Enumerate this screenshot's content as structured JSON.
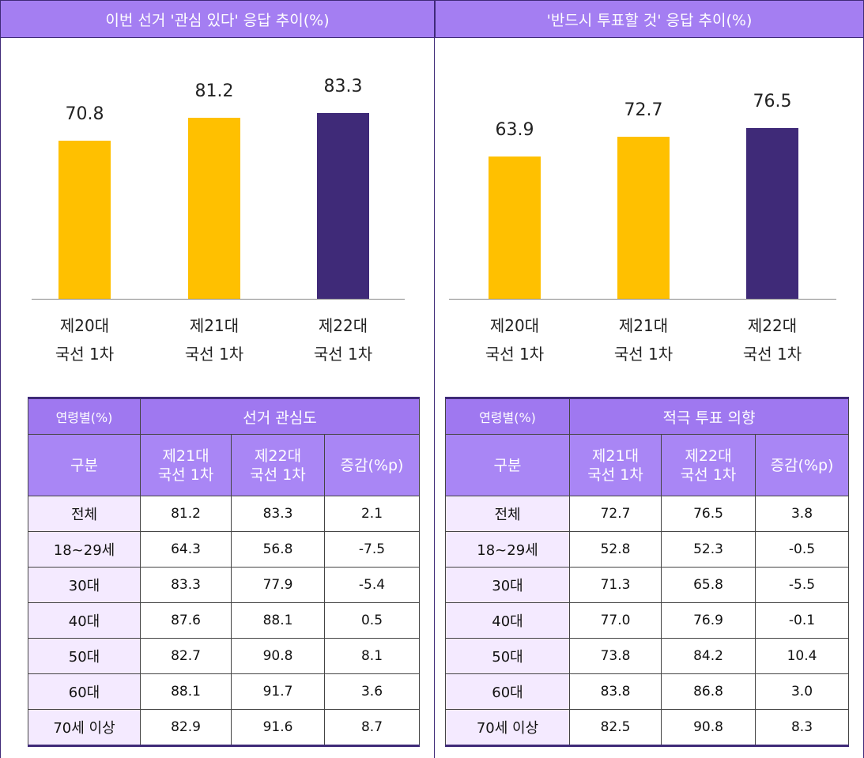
{
  "chart_data": [
    {
      "type": "bar",
      "title": "이번 선거 '관심 있다' 응답 추이(%)",
      "categories": [
        "제20대\n국선 1차",
        "제21대\n국선 1차",
        "제22대\n국선 1차"
      ],
      "values": [
        70.8,
        81.2,
        83.3
      ],
      "colors": [
        "#FFC000",
        "#FFC000",
        "#3F2A78"
      ],
      "ylim": [
        0,
        100
      ]
    },
    {
      "type": "bar",
      "title": "'반드시 투표할 것' 응답 추이(%)",
      "categories": [
        "제20대\n국선 1차",
        "제21대\n국선 1차",
        "제22대\n국선 1차"
      ],
      "values": [
        63.9,
        72.7,
        76.5
      ],
      "colors": [
        "#FFC000",
        "#FFC000",
        "#3F2A78"
      ],
      "ylim": [
        0,
        100
      ]
    }
  ],
  "tables": [
    {
      "header": [
        "연령별(%)",
        "선거 관심도"
      ],
      "columns": [
        "구분",
        "제21대\n국선 1차",
        "제22대\n국선 1차",
        "증감(%p)"
      ],
      "rows": [
        [
          "전체",
          "81.2",
          "83.3",
          "2.1"
        ],
        [
          "18~29세",
          "64.3",
          "56.8",
          "-7.5"
        ],
        [
          "30대",
          "83.3",
          "77.9",
          "-5.4"
        ],
        [
          "40대",
          "87.6",
          "88.1",
          "0.5"
        ],
        [
          "50대",
          "82.7",
          "90.8",
          "8.1"
        ],
        [
          "60대",
          "88.1",
          "91.7",
          "3.6"
        ],
        [
          "70세 이상",
          "82.9",
          "91.6",
          "8.7"
        ]
      ]
    },
    {
      "header": [
        "연령별(%)",
        "적극 투표 의향"
      ],
      "columns": [
        "구분",
        "제21대\n국선 1차",
        "제22대\n국선 1차",
        "증감(%p)"
      ],
      "rows": [
        [
          "전체",
          "72.7",
          "76.5",
          "3.8"
        ],
        [
          "18~29세",
          "52.8",
          "52.3",
          "-0.5"
        ],
        [
          "30대",
          "71.3",
          "65.8",
          "-5.5"
        ],
        [
          "40대",
          "77.0",
          "76.9",
          "-0.1"
        ],
        [
          "50대",
          "73.8",
          "84.2",
          "10.4"
        ],
        [
          "60대",
          "83.8",
          "86.8",
          "3.0"
        ],
        [
          "70세 이상",
          "82.5",
          "90.8",
          "8.3"
        ]
      ]
    }
  ]
}
